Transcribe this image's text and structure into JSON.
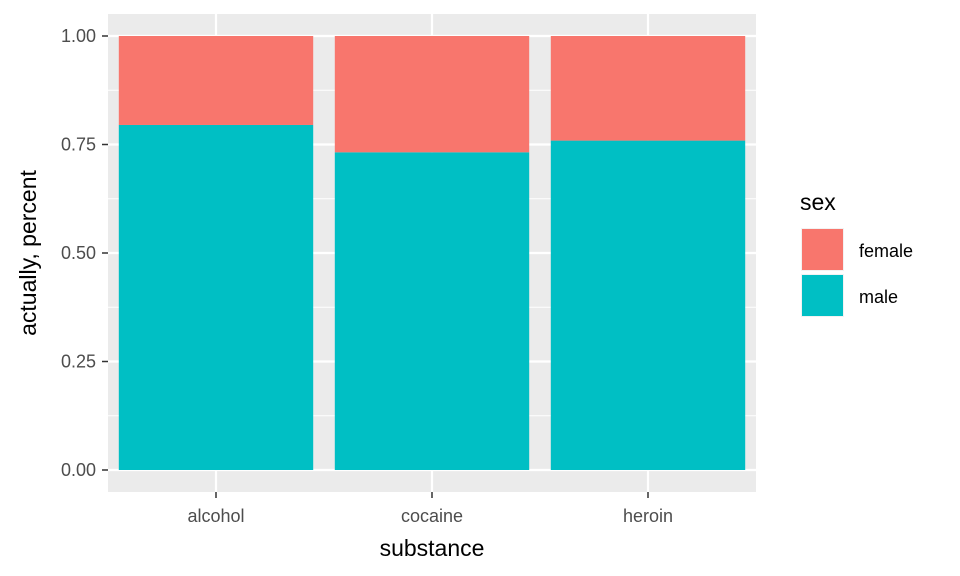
{
  "chart_data": {
    "type": "bar",
    "stacked": true,
    "categories": [
      "alcohol",
      "cocaine",
      "heroin"
    ],
    "series": [
      {
        "name": "female",
        "values": [
          0.205,
          0.268,
          0.241
        ],
        "color": "#F8766D"
      },
      {
        "name": "male",
        "values": [
          0.795,
          0.732,
          0.759
        ],
        "color": "#00BFC4"
      }
    ],
    "xlabel": "substance",
    "ylabel": "actually, percent",
    "ylim": [
      0,
      1
    ],
    "yticks": [
      "0.00",
      "0.25",
      "0.50",
      "0.75",
      "1.00"
    ],
    "grid": true,
    "legend": {
      "title": "sex",
      "position": "right"
    },
    "panel_background": "#EBEBEB"
  }
}
